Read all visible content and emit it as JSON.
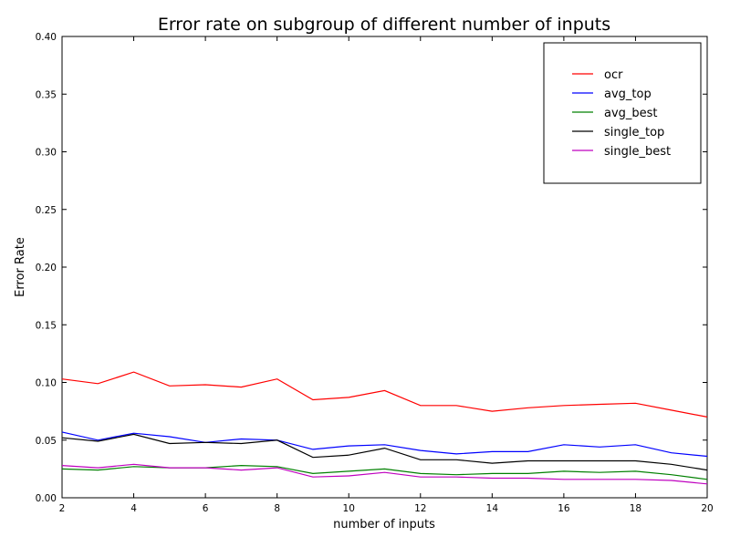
{
  "chart_data": {
    "type": "line",
    "title": "Error rate on subgroup of different number of inputs",
    "xlabel": "number of inputs",
    "ylabel": "Error Rate",
    "xlim": [
      2,
      20
    ],
    "ylim": [
      0.0,
      0.4
    ],
    "xticks": [
      2,
      4,
      6,
      8,
      10,
      12,
      14,
      16,
      18,
      20
    ],
    "xtick_labels": [
      "2",
      "4",
      "6",
      "8",
      "10",
      "12",
      "14",
      "16",
      "18",
      "20"
    ],
    "yticks": [
      0.0,
      0.05,
      0.1,
      0.15,
      0.2,
      0.25,
      0.3,
      0.35,
      0.4
    ],
    "ytick_labels": [
      "0.00",
      "0.05",
      "0.10",
      "0.15",
      "0.20",
      "0.25",
      "0.30",
      "0.35",
      "0.40"
    ],
    "grid": false,
    "legend_position": "top-right",
    "x": [
      2,
      3,
      4,
      5,
      6,
      7,
      8,
      9,
      10,
      11,
      12,
      13,
      14,
      15,
      16,
      17,
      18,
      19,
      20
    ],
    "series": [
      {
        "name": "ocr",
        "color": "#ff0000",
        "values": [
          0.103,
          0.099,
          0.109,
          0.097,
          0.098,
          0.096,
          0.103,
          0.085,
          0.087,
          0.093,
          0.08,
          0.08,
          0.075,
          0.078,
          0.08,
          0.081,
          0.082,
          0.076,
          0.07
        ]
      },
      {
        "name": "avg_top",
        "color": "#0000ff",
        "values": [
          0.057,
          0.05,
          0.056,
          0.053,
          0.048,
          0.051,
          0.05,
          0.042,
          0.045,
          0.046,
          0.041,
          0.038,
          0.04,
          0.04,
          0.046,
          0.044,
          0.046,
          0.039,
          0.036
        ]
      },
      {
        "name": "avg_best",
        "color": "#008000",
        "values": [
          0.025,
          0.024,
          0.027,
          0.026,
          0.026,
          0.028,
          0.027,
          0.021,
          0.023,
          0.025,
          0.021,
          0.02,
          0.021,
          0.021,
          0.023,
          0.022,
          0.023,
          0.02,
          0.016
        ]
      },
      {
        "name": "single_top",
        "color": "#000000",
        "values": [
          0.052,
          0.049,
          0.055,
          0.047,
          0.048,
          0.047,
          0.05,
          0.035,
          0.037,
          0.043,
          0.033,
          0.033,
          0.03,
          0.032,
          0.032,
          0.032,
          0.032,
          0.029,
          0.024
        ]
      },
      {
        "name": "single_best",
        "color": "#bf00bf",
        "values": [
          0.028,
          0.026,
          0.029,
          0.026,
          0.026,
          0.024,
          0.026,
          0.018,
          0.019,
          0.022,
          0.018,
          0.018,
          0.017,
          0.017,
          0.016,
          0.016,
          0.016,
          0.015,
          0.012
        ]
      }
    ]
  }
}
